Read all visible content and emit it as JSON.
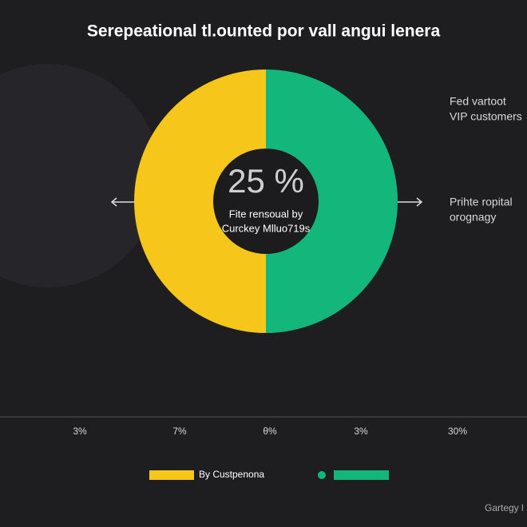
{
  "chart_data": {
    "type": "pie",
    "title": "Serepeational tl.ounted por vall angui lenera",
    "categories": [
      "By Custpenona",
      null
    ],
    "values": [
      50,
      50
    ],
    "colors": [
      "#f6c61a",
      "#13b77b"
    ],
    "center_label": "25 %",
    "center_text": [
      "Fite rensoual by",
      "Curckey Mlluo719s"
    ],
    "annotations": [
      [
        "Fed vartoot",
        "VIP customers"
      ],
      [
        "Prihte ropital",
        "orognagy"
      ]
    ],
    "axis_labels": [
      "%",
      "3%",
      "7%",
      "θ%",
      "3%",
      "30%"
    ],
    "footer": "Gartegy l"
  }
}
